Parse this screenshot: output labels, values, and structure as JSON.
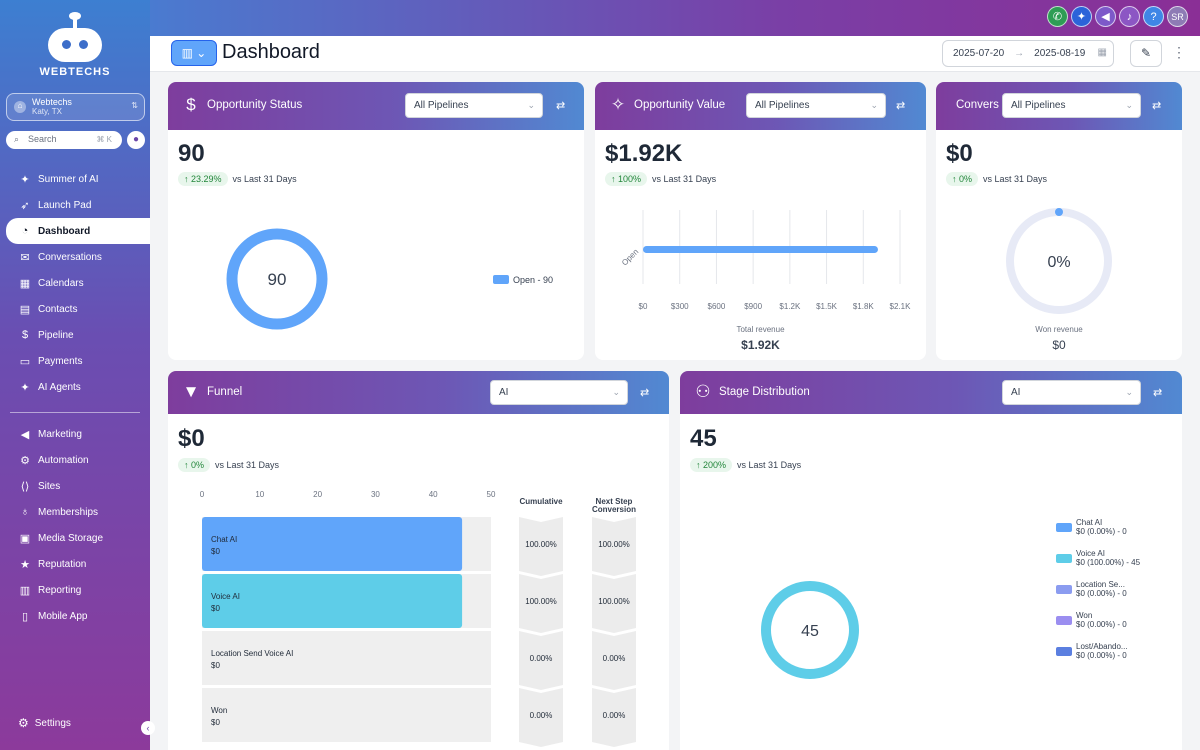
{
  "topbar": {
    "icons": [
      "phone-icon",
      "sparkle-icon",
      "megaphone-icon",
      "bell-icon",
      "help-icon"
    ],
    "avatar_initials": "SR"
  },
  "sidebar": {
    "logo_text": "WEBTECHS",
    "account": {
      "name": "Webtechs",
      "location": "Katy, TX"
    },
    "search": {
      "placeholder": "Search",
      "shortcut": "⌘ K"
    },
    "items": [
      {
        "label": "Summer of AI",
        "icon": "sparkle-icon"
      },
      {
        "label": "Launch Pad",
        "icon": "rocket-icon"
      },
      {
        "label": "Dashboard",
        "icon": "gauge-icon",
        "active": true
      },
      {
        "label": "Conversations",
        "icon": "chat-icon"
      },
      {
        "label": "Calendars",
        "icon": "calendar-icon"
      },
      {
        "label": "Contacts",
        "icon": "contacts-icon"
      },
      {
        "label": "Pipeline",
        "icon": "dollar-icon"
      },
      {
        "label": "Payments",
        "icon": "payments-icon"
      },
      {
        "label": "AI Agents",
        "icon": "sparkle-icon"
      }
    ],
    "items2": [
      {
        "label": "Marketing",
        "icon": "megaphone-icon"
      },
      {
        "label": "Automation",
        "icon": "gear-icon"
      },
      {
        "label": "Sites",
        "icon": "code-icon"
      },
      {
        "label": "Memberships",
        "icon": "badge-icon"
      },
      {
        "label": "Media Storage",
        "icon": "image-icon"
      },
      {
        "label": "Reputation",
        "icon": "star-icon"
      },
      {
        "label": "Reporting",
        "icon": "chart-icon"
      },
      {
        "label": "Mobile App",
        "icon": "phone-icon"
      }
    ],
    "settings_label": "Settings"
  },
  "header": {
    "title": "Dashboard",
    "date_start": "2025-07-20",
    "date_arrow": "→",
    "date_end": "2025-08-19"
  },
  "cards": {
    "opportunity_status": {
      "title": "Opportunity Status",
      "dropdown": "All Pipelines",
      "value": "90",
      "trend_pct": "23.29%",
      "trend_text": "vs Last 31 Days",
      "donut_center": "90",
      "legend": "Open - 90",
      "color": "#60a5fa"
    },
    "opportunity_value": {
      "title": "Opportunity Value",
      "dropdown": "All Pipelines",
      "value": "$1.92K",
      "trend_pct": "100%",
      "trend_text": "vs Last 31 Days",
      "footer_label": "Total revenue",
      "footer_value": "$1.92K"
    },
    "conversion": {
      "title": "Convers",
      "dropdown": "All Pipelines",
      "value": "$0",
      "trend_pct": "0%",
      "trend_text": "vs Last 31 Days",
      "donut_center": "0%",
      "footer_label": "Won revenue",
      "footer_value": "$0"
    },
    "funnel": {
      "title": "Funnel",
      "dropdown": "AI",
      "value": "$0",
      "trend_pct": "0%",
      "trend_text": "vs Last 31 Days",
      "axis_ticks": [
        "0",
        "10",
        "20",
        "30",
        "40",
        "50"
      ],
      "col_cumulative": "Cumulative",
      "col_next_step_1": "Next Step",
      "col_next_step_2": "Conversion",
      "rows": [
        {
          "name": "Chat   AI",
          "amount": "$0",
          "cumulative": "100.00%",
          "next": "100.00%"
        },
        {
          "name": "Voice   AI",
          "amount": "$0",
          "cumulative": "100.00%",
          "next": "100.00%"
        },
        {
          "name": "Location Send   Voice AI",
          "amount": "$0",
          "cumulative": "0.00%",
          "next": "0.00%"
        },
        {
          "name": "Won",
          "amount": "$0",
          "cumulative": "0.00%",
          "next": "0.00%"
        }
      ]
    },
    "stage_distribution": {
      "title": "Stage Distribution",
      "dropdown": "AI",
      "value": "45",
      "trend_pct": "200%",
      "trend_text": "vs Last 31 Days",
      "donut_center": "45",
      "legend": [
        {
          "name": "Chat   AI",
          "value": "$0 (0.00%) - 0",
          "color": "#60a5fa"
        },
        {
          "name": "Voice   AI",
          "value": "$0 (100.00%) - 45",
          "color": "#5ecde8"
        },
        {
          "name": "Location Se...",
          "value": "$0 (0.00%) - 0",
          "color": "#8b9cf0"
        },
        {
          "name": "Won",
          "value": "$0 (0.00%) - 0",
          "color": "#9b8ef0"
        },
        {
          "name": "Lost/Abando...",
          "value": "$0 (0.00%) - 0",
          "color": "#5b7fe0"
        }
      ]
    }
  },
  "chart_data": [
    {
      "type": "pie",
      "categories": [
        "Open"
      ],
      "values": [
        90
      ],
      "title": "Opportunity Status"
    },
    {
      "type": "bar",
      "orientation": "horizontal",
      "categories": [
        "Open"
      ],
      "values": [
        1920
      ],
      "xlim": [
        0,
        2100
      ],
      "x_ticks": [
        "$0",
        "$300",
        "$600",
        "$900",
        "$1.2K",
        "$1.5K",
        "$1.8K",
        "$2.1K"
      ],
      "xlabel": "Total revenue",
      "grid": true
    },
    {
      "type": "pie",
      "categories": [
        "Won"
      ],
      "values": [
        0
      ],
      "title": "Won revenue"
    },
    {
      "type": "bar",
      "orientation": "horizontal",
      "categories": [
        "Chat   AI",
        "Voice   AI",
        "Location Send   Voice AI",
        "Won"
      ],
      "values": [
        45,
        45,
        0,
        0
      ],
      "xlim": [
        0,
        50
      ]
    },
    {
      "type": "pie",
      "categories": [
        "Chat   AI",
        "Voice   AI",
        "Location Se...",
        "Won",
        "Lost/Abando..."
      ],
      "values": [
        0,
        45,
        0,
        0,
        0
      ]
    }
  ]
}
